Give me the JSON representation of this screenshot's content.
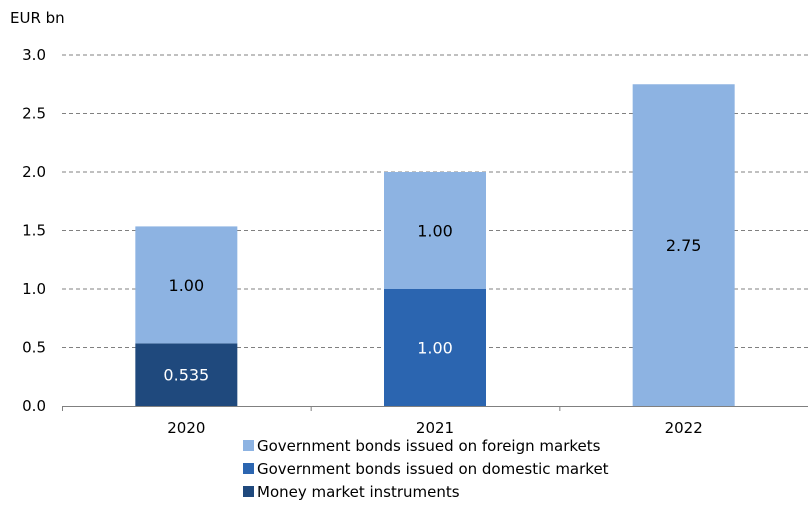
{
  "chart_data": {
    "type": "bar",
    "stacked": true,
    "unit_label": "EUR bn",
    "categories": [
      "2020",
      "2021",
      "2022"
    ],
    "series": [
      {
        "name": "Money market instruments",
        "values": [
          0.535,
          0,
          0
        ],
        "labels": [
          "0.535",
          "",
          ""
        ],
        "color": "#1f497d",
        "label_color": "#ffffff"
      },
      {
        "name": "Government bonds issued on domestic market",
        "values": [
          0,
          1.0,
          0
        ],
        "labels": [
          "",
          "1.00",
          ""
        ],
        "color": "#2b65b0",
        "label_color": "#ffffff"
      },
      {
        "name": "Government bonds issued on foreign markets",
        "values": [
          1.0,
          1.0,
          2.75
        ],
        "labels": [
          "1.00",
          "1.00",
          "2.75"
        ],
        "color": "#8db3e2",
        "label_color": "#000000"
      }
    ],
    "legend_order": [
      2,
      1,
      0
    ],
    "ylim": [
      0,
      3.0
    ],
    "yticks": [
      "0.0",
      "0.5",
      "1.0",
      "1.5",
      "2.0",
      "2.5",
      "3.0"
    ],
    "grid": true,
    "legend_position": "bottom-center"
  }
}
